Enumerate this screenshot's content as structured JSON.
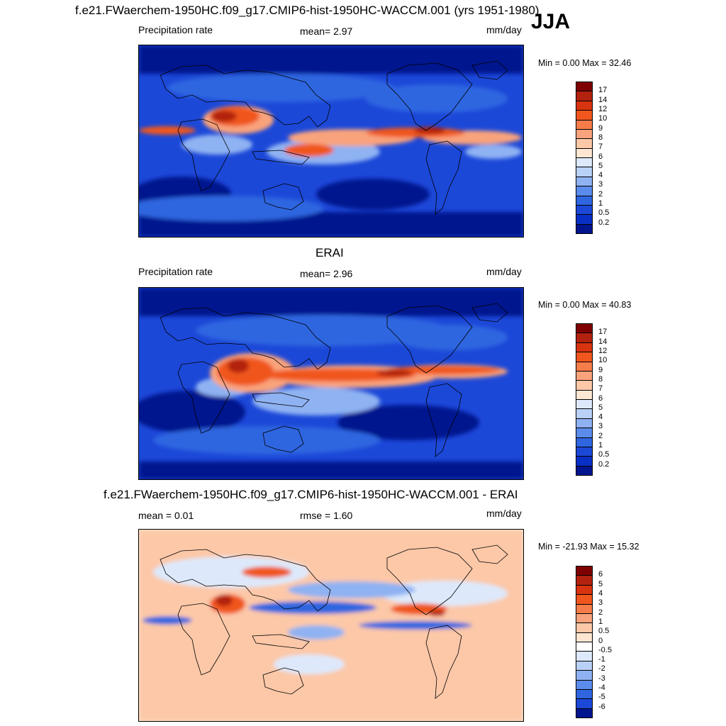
{
  "figure": {
    "title": "f.e21.FWaerchem-1950HC.f09_g17.CMIP6-hist-1950HC-WACCM.001 (yrs 1951-1980)",
    "season": "JJA"
  },
  "panels": [
    {
      "id": "model",
      "title": "",
      "left_label": "Precipitation rate",
      "center_label": "mean=   2.97",
      "units": "mm/day",
      "minmax": "Min =   0.00 Max =  32.46",
      "levels": [
        "17",
        "14",
        "12",
        "10",
        "9",
        "8",
        "7",
        "6",
        "5",
        "4",
        "3",
        "2",
        "1",
        "0.5",
        "0.2"
      ],
      "colors": [
        "#7f0000",
        "#b2220e",
        "#d83410",
        "#f0561e",
        "#f67c4a",
        "#f9a37c",
        "#fcc8a8",
        "#fde7d2",
        "#dde9fb",
        "#b9d1f7",
        "#8fb2f2",
        "#5b8cec",
        "#2f66e0",
        "#1c48d8",
        "#0830c6",
        "#00158e"
      ]
    },
    {
      "id": "obs",
      "title": "ERAI",
      "left_label": "Precipitation rate",
      "center_label": "mean=   2.96",
      "units": "mm/day",
      "minmax": "Min =   0.00 Max =  40.83",
      "levels": [
        "17",
        "14",
        "12",
        "10",
        "9",
        "8",
        "7",
        "6",
        "5",
        "4",
        "3",
        "2",
        "1",
        "0.5",
        "0.2"
      ],
      "colors": [
        "#7f0000",
        "#b2220e",
        "#d83410",
        "#f0561e",
        "#f67c4a",
        "#f9a37c",
        "#fcc8a8",
        "#fde7d2",
        "#dde9fb",
        "#b9d1f7",
        "#8fb2f2",
        "#5b8cec",
        "#2f66e0",
        "#1c48d8",
        "#0830c6",
        "#00158e"
      ]
    },
    {
      "id": "diff",
      "title": "f.e21.FWaerchem-1950HC.f09_g17.CMIP6-hist-1950HC-WACCM.001 - ERAI",
      "left_label": "mean =   0.01",
      "center_label": "rmse =   1.60",
      "units": "mm/day",
      "minmax": "Min = -21.93 Max =  15.32",
      "levels": [
        "6",
        "5",
        "4",
        "3",
        "2",
        "1",
        "0.5",
        "0",
        "-0.5",
        "-1",
        "-2",
        "-3",
        "-4",
        "-5",
        "-6"
      ],
      "colors": [
        "#7f0000",
        "#b2220e",
        "#d83410",
        "#f0561e",
        "#f67c4a",
        "#f9a37c",
        "#fcc8a8",
        "#fde7d2",
        "#ffffff",
        "#dde9fb",
        "#b9d1f7",
        "#8fb2f2",
        "#5b8cec",
        "#2f66e0",
        "#1c48d8",
        "#00158e"
      ]
    }
  ]
}
